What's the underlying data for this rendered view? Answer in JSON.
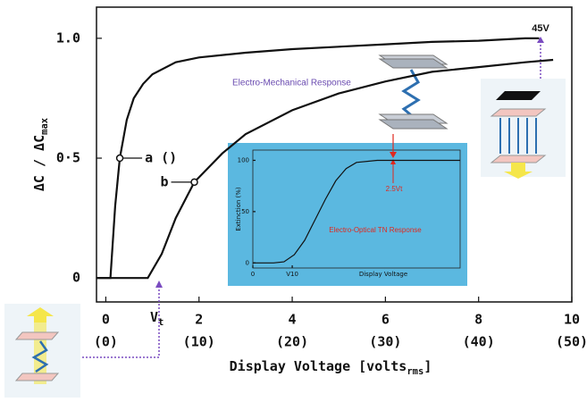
{
  "chart_data": [
    {
      "type": "line",
      "ylabel": [
        "ΔC / ΔC",
        "max"
      ],
      "xlabel": [
        "Display Voltage [volts",
        "rms",
        "]"
      ],
      "xlim": [
        -0.2,
        10
      ],
      "ylim": [
        -0.1,
        1.13
      ],
      "xticks": [
        0,
        2,
        4,
        6,
        8,
        10
      ],
      "xticks_secondary": [
        "(0)",
        "(10)",
        "(20)",
        "(30)",
        "(40)",
        "(50)"
      ],
      "yticks": [
        0,
        {
          "value": 0.5,
          "label": "0·5"
        },
        {
          "value": 1,
          "label": "1.0"
        }
      ],
      "series": [
        {
          "name": "a ()",
          "color": "#111111",
          "x": [
            -0.2,
            0.1,
            0.2,
            0.3,
            0.45,
            0.6,
            0.8,
            1,
            1.5,
            2,
            3,
            4,
            5,
            6,
            7,
            8,
            9,
            9.3
          ],
          "values": [
            0,
            0,
            0.3,
            0.5,
            0.66,
            0.75,
            0.81,
            0.85,
            0.9,
            0.92,
            0.94,
            0.955,
            0.965,
            0.975,
            0.985,
            0.99,
            1.0,
            1.0
          ]
        },
        {
          "name": "b",
          "color": "#111111",
          "x": [
            -0.2,
            0.9,
            1.2,
            1.5,
            1.9,
            2.5,
            3,
            4,
            5,
            6,
            7,
            8,
            9,
            9.6
          ],
          "values": [
            0,
            0,
            0.1,
            0.25,
            0.4,
            0.52,
            0.6,
            0.7,
            0.77,
            0.82,
            0.86,
            0.88,
            0.9,
            0.91
          ]
        }
      ],
      "threshold_label": [
        "V",
        "t"
      ],
      "annotations": [
        "Electro-Mechanical Response",
        "45V"
      ]
    },
    {
      "type": "line",
      "title": "Electro-Optical TN Response",
      "ylabel": "Extinction (%)",
      "xlabel": "Display Voltage",
      "xlim": [
        0,
        10
      ],
      "ylim": [
        -5,
        110
      ],
      "xticks": [
        0,
        {
          "value": 1.9,
          "label": "V10"
        }
      ],
      "yticks": [
        0,
        50,
        100
      ],
      "series": [
        {
          "color": "#111111",
          "x": [
            0,
            1,
            1.5,
            2,
            2.5,
            3,
            3.5,
            4,
            4.5,
            5,
            6,
            7,
            8,
            9,
            10
          ],
          "values": [
            0,
            0,
            1,
            8,
            22,
            42,
            62,
            80,
            92,
            98,
            100,
            100,
            100,
            100,
            100
          ]
        }
      ],
      "annotations": [
        "2.5Vt"
      ]
    }
  ]
}
